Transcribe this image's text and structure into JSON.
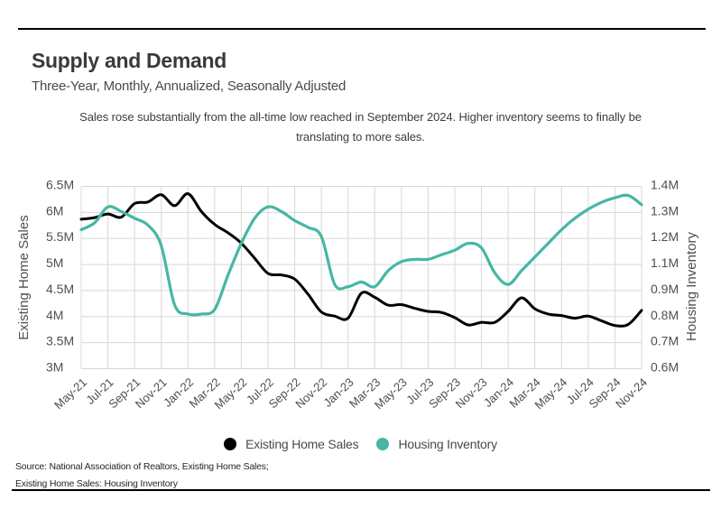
{
  "header": {
    "title": "Supply and Demand",
    "subtitle": "Three-Year, Monthly, Annualized, Seasonally Adjusted"
  },
  "note": {
    "lines": [
      "Sales rose substantially from the all-time low reached in September 2024. Higher inventory seems to finally be",
      "translating to more sales."
    ]
  },
  "chart_data": {
    "type": "line",
    "months": [
      "May-21",
      "Jun-21",
      "Jul-21",
      "Aug-21",
      "Sep-21",
      "Oct-21",
      "Nov-21",
      "Dec-21",
      "Jan-22",
      "Feb-22",
      "Mar-22",
      "Apr-22",
      "May-22",
      "Jun-22",
      "Jul-22",
      "Aug-22",
      "Sep-22",
      "Oct-22",
      "Nov-22",
      "Dec-22",
      "Jan-23",
      "Feb-23",
      "Mar-23",
      "Apr-23",
      "May-23",
      "Jun-23",
      "Jul-23",
      "Aug-23",
      "Sep-23",
      "Oct-23",
      "Nov-23",
      "Dec-23",
      "Jan-24",
      "Feb-24",
      "Mar-24",
      "Apr-24",
      "May-24",
      "Jun-24",
      "Jul-24",
      "Aug-24",
      "Sep-24",
      "Oct-24",
      "Nov-24"
    ],
    "x_tick_labels": [
      "May-21",
      "Jul-21",
      "Sep-21",
      "Nov-21",
      "Jan-22",
      "Mar-22",
      "May-22",
      "Jul-22",
      "Sep-22",
      "Nov-22",
      "Jan-23",
      "Mar-23",
      "May-23",
      "Jul-23",
      "Sep-23",
      "Nov-23",
      "Jan-24",
      "Mar-24",
      "May-24",
      "Jul-24",
      "Sep-24",
      "Nov-24"
    ],
    "series": [
      {
        "name": "Existing Home Sales",
        "axis": "left",
        "color": "#000000",
        "unit": "millions, SAAR",
        "values": [
          5.87,
          5.9,
          5.97,
          5.91,
          6.17,
          6.2,
          6.34,
          6.13,
          6.36,
          6.02,
          5.77,
          5.61,
          5.41,
          5.12,
          4.83,
          4.8,
          4.72,
          4.43,
          4.09,
          4.01,
          3.97,
          4.45,
          4.37,
          4.22,
          4.23,
          4.16,
          4.1,
          4.08,
          3.98,
          3.84,
          3.89,
          3.89,
          4.1,
          4.36,
          4.15,
          4.05,
          4.02,
          3.97,
          4.01,
          3.92,
          3.83,
          3.85,
          4.12
        ]
      },
      {
        "name": "Housing Inventory",
        "axis": "right",
        "color": "#45b7a4",
        "unit": "millions",
        "values": [
          1.21,
          1.24,
          1.31,
          1.29,
          1.26,
          1.23,
          1.14,
          0.88,
          0.84,
          0.84,
          0.86,
          1.01,
          1.15,
          1.26,
          1.31,
          1.29,
          1.25,
          1.22,
          1.18,
          0.97,
          0.96,
          0.98,
          0.96,
          1.03,
          1.07,
          1.08,
          1.08,
          1.1,
          1.12,
          1.15,
          1.13,
          1.02,
          0.97,
          1.03,
          1.09,
          1.15,
          1.21,
          1.26,
          1.3,
          1.33,
          1.35,
          1.36,
          1.32
        ]
      }
    ],
    "left_axis": {
      "title": "Existing Home Sales",
      "tick_labels": [
        "6.5M",
        "6M",
        "5.5M",
        "5M",
        "4.5M",
        "4M",
        "3.5M",
        "3M"
      ],
      "max": 6.5,
      "min": 3.0
    },
    "right_axis": {
      "title": "Housing Inventory",
      "tick_labels": [
        "1.4M",
        "1.3M",
        "1.2M",
        "1.1M",
        "0.9M",
        "0.8M",
        "0.7M",
        "0.6M"
      ],
      "max": 1.4,
      "min": 0.6
    },
    "grid": true,
    "grid_color": "#d8d8d8",
    "legend_position": "bottom"
  },
  "legend": {
    "items": [
      {
        "label": "Existing Home Sales",
        "color": "#000000"
      },
      {
        "label": "Housing Inventory",
        "color": "#45b7a4"
      }
    ]
  },
  "source": {
    "lines": [
      "Source:  National Association of Realtors, Existing Home Sales;",
      "Existing Home Sales: Housing Inventory"
    ]
  }
}
